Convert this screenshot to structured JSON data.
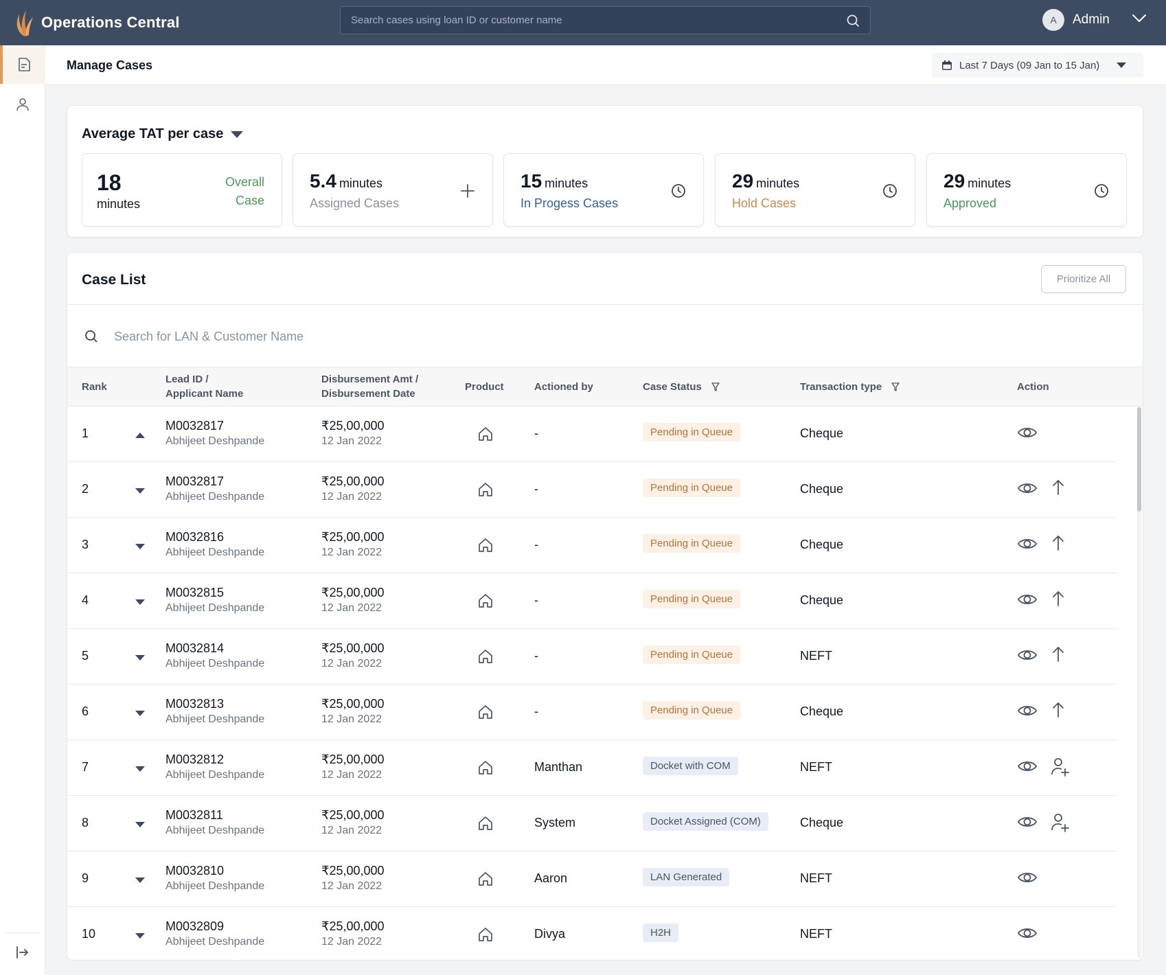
{
  "app": {
    "title": "Operations Central"
  },
  "search": {
    "placeholder": "Search cases using loan ID or customer name"
  },
  "user": {
    "initial": "A",
    "name": "Admin"
  },
  "page": {
    "title": "Manage Cases",
    "date_filter": "Last 7 Days (09 Jan to 15 Jan)"
  },
  "tat": {
    "title": "Average TAT per case",
    "overall": {
      "value": "18",
      "unit": "minutes",
      "label_line1": "Overall",
      "label_line2": "Case"
    },
    "stats": [
      {
        "value": "5.4",
        "unit": "minutes",
        "label": "Assigned Cases",
        "color": "#8a93a1",
        "icon": "plus-icon"
      },
      {
        "value": "15",
        "unit": "minutes",
        "label": "In Progess Cases",
        "color": "#2f5fa3",
        "icon": "clock-icon"
      },
      {
        "value": "29",
        "unit": "minutes",
        "label": "Hold Cases",
        "color": "#c98a4b",
        "icon": "clock-icon"
      },
      {
        "value": "29",
        "unit": "minutes",
        "label": "Approved",
        "color": "#4a9a5a",
        "icon": "clock-icon"
      }
    ]
  },
  "case_list": {
    "title": "Case List",
    "prioritize_label": "Prioritize All",
    "search_placeholder": "Search for LAN & Customer Name",
    "columns": {
      "rank": "Rank",
      "lead_1": "Lead ID /",
      "lead_2": "Applicant Name",
      "amt_1": "Disbursement Amt /",
      "amt_2": "Disbursement Date",
      "product": "Product",
      "actioned": "Actioned by",
      "status": "Case Status",
      "ttype": "Transaction type",
      "action": "Action"
    },
    "rows": [
      {
        "rank": "1",
        "caret": "up",
        "lead_id": "M0032817",
        "name": "Abhijeet Deshpande",
        "amount": "₹25,00,000",
        "date": "12 Jan 2022",
        "actioned_by": "-",
        "status": "Pending in Queue",
        "status_kind": "pending",
        "ttype": "Cheque",
        "extra_action": ""
      },
      {
        "rank": "2",
        "caret": "down",
        "lead_id": "M0032817",
        "name": "Abhijeet Deshpande",
        "amount": "₹25,00,000",
        "date": "12 Jan 2022",
        "actioned_by": "-",
        "status": "Pending in Queue",
        "status_kind": "pending",
        "ttype": "Cheque",
        "extra_action": "arrow-up-icon"
      },
      {
        "rank": "3",
        "caret": "down",
        "lead_id": "M0032816",
        "name": "Abhijeet Deshpande",
        "amount": "₹25,00,000",
        "date": "12 Jan 2022",
        "actioned_by": "-",
        "status": "Pending in Queue",
        "status_kind": "pending",
        "ttype": "Cheque",
        "extra_action": "arrow-up-icon"
      },
      {
        "rank": "4",
        "caret": "down",
        "lead_id": "M0032815",
        "name": "Abhijeet Deshpande",
        "amount": "₹25,00,000",
        "date": "12 Jan 2022",
        "actioned_by": "-",
        "status": "Pending in Queue",
        "status_kind": "pending",
        "ttype": "Cheque",
        "extra_action": "arrow-up-icon"
      },
      {
        "rank": "5",
        "caret": "down",
        "lead_id": "M0032814",
        "name": "Abhijeet Deshpande",
        "amount": "₹25,00,000",
        "date": "12 Jan 2022",
        "actioned_by": "-",
        "status": "Pending in Queue",
        "status_kind": "pending",
        "ttype": "NEFT",
        "extra_action": "arrow-up-icon"
      },
      {
        "rank": "6",
        "caret": "down",
        "lead_id": "M0032813",
        "name": "Abhijeet Deshpande",
        "amount": "₹25,00,000",
        "date": "12 Jan 2022",
        "actioned_by": "-",
        "status": "Pending in Queue",
        "status_kind": "pending",
        "ttype": "Cheque",
        "extra_action": "arrow-up-icon"
      },
      {
        "rank": "7",
        "caret": "down",
        "lead_id": "M0032812",
        "name": "Abhijeet Deshpande",
        "amount": "₹25,00,000",
        "date": "12 Jan 2022",
        "actioned_by": "Manthan",
        "status": "Docket with COM",
        "status_kind": "info",
        "ttype": "NEFT",
        "extra_action": "user-plus-icon"
      },
      {
        "rank": "8",
        "caret": "down",
        "lead_id": "M0032811",
        "name": "Abhijeet Deshpande",
        "amount": "₹25,00,000",
        "date": "12 Jan 2022",
        "actioned_by": "System",
        "status": "Docket Assigned (COM)",
        "status_kind": "info",
        "ttype": "Cheque",
        "extra_action": "user-plus-icon"
      },
      {
        "rank": "9",
        "caret": "down",
        "lead_id": "M0032810",
        "name": "Abhijeet Deshpande",
        "amount": "₹25,00,000",
        "date": "12 Jan 2022",
        "actioned_by": "Aaron",
        "status": "LAN Generated",
        "status_kind": "info",
        "ttype": "NEFT",
        "extra_action": ""
      },
      {
        "rank": "10",
        "caret": "down",
        "lead_id": "M0032809",
        "name": "Abhijeet Deshpande",
        "amount": "₹25,00,000",
        "date": "12 Jan 2022",
        "actioned_by": "Divya",
        "status": "H2H",
        "status_kind": "info",
        "ttype": "NEFT",
        "extra_action": ""
      }
    ]
  },
  "colors": {
    "topbar": "#3e4c63",
    "accent": "#e29a5b",
    "pending_text": "#b8733a",
    "success": "#4a9a5a"
  }
}
